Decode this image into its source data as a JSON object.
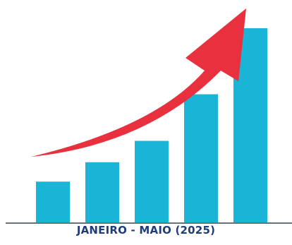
{
  "colors": {
    "bar": "#19b4d6",
    "arrow": "#e8303e",
    "axis": "#6b7178",
    "caption": "#1f3d7a"
  },
  "caption": "JANEIRO - MAIO (2025)",
  "chart_data": {
    "type": "bar",
    "title": "",
    "xlabel": "JANEIRO - MAIO (2025)",
    "ylabel": "",
    "categories": [
      "",
      "",
      "",
      "",
      ""
    ],
    "values": [
      21,
      31,
      42,
      66,
      100
    ],
    "ylim": [
      0,
      100
    ],
    "grid": false,
    "legend": "none",
    "trend_arrow": true
  }
}
